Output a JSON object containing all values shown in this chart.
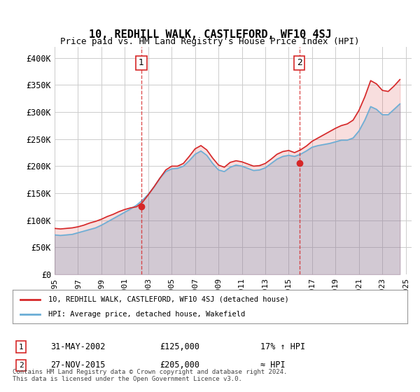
{
  "title": "10, REDHILL WALK, CASTLEFORD, WF10 4SJ",
  "subtitle": "Price paid vs. HM Land Registry's House Price Index (HPI)",
  "legend_line1": "10, REDHILL WALK, CASTLEFORD, WF10 4SJ (detached house)",
  "legend_line2": "HPI: Average price, detached house, Wakefield",
  "transaction1_label": "1",
  "transaction1_date": "31-MAY-2002",
  "transaction1_price": "£125,000",
  "transaction1_hpi": "17% ↑ HPI",
  "transaction2_label": "2",
  "transaction2_date": "27-NOV-2015",
  "transaction2_price": "£205,000",
  "transaction2_hpi": "≈ HPI",
  "footer": "Contains HM Land Registry data © Crown copyright and database right 2024.\nThis data is licensed under the Open Government Licence v3.0.",
  "hpi_color": "#6baed6",
  "price_color": "#d62728",
  "marker_color": "#d62728",
  "vline_color": "#d62728",
  "background_color": "#ffffff",
  "grid_color": "#cccccc",
  "ylim": [
    0,
    420000
  ],
  "yticks": [
    0,
    50000,
    100000,
    150000,
    200000,
    250000,
    300000,
    350000,
    400000
  ],
  "ytick_labels": [
    "£0",
    "£50K",
    "£100K",
    "£150K",
    "£200K",
    "£250K",
    "£300K",
    "£350K",
    "£400K"
  ],
  "transaction1_x": 2002.42,
  "transaction1_y": 125000,
  "transaction2_x": 2015.92,
  "transaction2_y": 205000,
  "hpi_years": [
    1995.0,
    1995.5,
    1996.0,
    1996.5,
    1997.0,
    1997.5,
    1998.0,
    1998.5,
    1999.0,
    1999.5,
    2000.0,
    2000.5,
    2001.0,
    2001.5,
    2002.0,
    2002.5,
    2003.0,
    2003.5,
    2004.0,
    2004.5,
    2005.0,
    2005.5,
    2006.0,
    2006.5,
    2007.0,
    2007.5,
    2008.0,
    2008.5,
    2009.0,
    2009.5,
    2010.0,
    2010.5,
    2011.0,
    2011.5,
    2012.0,
    2012.5,
    2013.0,
    2013.5,
    2014.0,
    2014.5,
    2015.0,
    2015.5,
    2016.0,
    2016.5,
    2017.0,
    2017.5,
    2018.0,
    2018.5,
    2019.0,
    2019.5,
    2020.0,
    2020.5,
    2021.0,
    2021.5,
    2022.0,
    2022.5,
    2023.0,
    2023.5,
    2024.0,
    2024.5
  ],
  "hpi_values": [
    73000,
    72000,
    73000,
    74000,
    77000,
    80000,
    83000,
    86000,
    91000,
    97000,
    103000,
    109000,
    115000,
    121000,
    128000,
    137000,
    148000,
    162000,
    178000,
    190000,
    195000,
    196000,
    200000,
    210000,
    222000,
    228000,
    220000,
    205000,
    193000,
    190000,
    198000,
    202000,
    200000,
    196000,
    192000,
    193000,
    197000,
    205000,
    213000,
    218000,
    220000,
    218000,
    222000,
    228000,
    235000,
    238000,
    240000,
    242000,
    245000,
    248000,
    248000,
    252000,
    265000,
    285000,
    310000,
    305000,
    295000,
    295000,
    305000,
    315000
  ],
  "price_years": [
    1995.0,
    1995.5,
    1996.0,
    1996.5,
    1997.0,
    1997.5,
    1998.0,
    1998.5,
    1999.0,
    1999.5,
    2000.0,
    2000.5,
    2001.0,
    2001.5,
    2002.0,
    2002.5,
    2003.0,
    2003.5,
    2004.0,
    2004.5,
    2005.0,
    2005.5,
    2006.0,
    2006.5,
    2007.0,
    2007.5,
    2008.0,
    2008.5,
    2009.0,
    2009.5,
    2010.0,
    2010.5,
    2011.0,
    2011.5,
    2012.0,
    2012.5,
    2013.0,
    2013.5,
    2014.0,
    2014.5,
    2015.0,
    2015.5,
    2016.0,
    2016.5,
    2017.0,
    2017.5,
    2018.0,
    2018.5,
    2019.0,
    2019.5,
    2020.0,
    2020.5,
    2021.0,
    2021.5,
    2022.0,
    2022.5,
    2023.0,
    2023.5,
    2024.0,
    2024.5
  ],
  "price_values": [
    85000,
    84000,
    85000,
    86000,
    88000,
    91000,
    95000,
    98000,
    102000,
    107000,
    111000,
    116000,
    120000,
    123000,
    125000,
    133000,
    147000,
    162000,
    178000,
    193000,
    200000,
    200000,
    205000,
    218000,
    232000,
    238000,
    230000,
    215000,
    202000,
    198000,
    207000,
    210000,
    208000,
    204000,
    200000,
    201000,
    205000,
    213000,
    222000,
    227000,
    229000,
    225000,
    230000,
    237000,
    246000,
    252000,
    258000,
    264000,
    270000,
    275000,
    278000,
    285000,
    303000,
    328000,
    358000,
    352000,
    340000,
    338000,
    348000,
    360000
  ],
  "xtick_years": [
    1995,
    1997,
    1999,
    2001,
    2003,
    2005,
    2007,
    2009,
    2011,
    2013,
    2015,
    2017,
    2019,
    2021,
    2023,
    2025
  ]
}
